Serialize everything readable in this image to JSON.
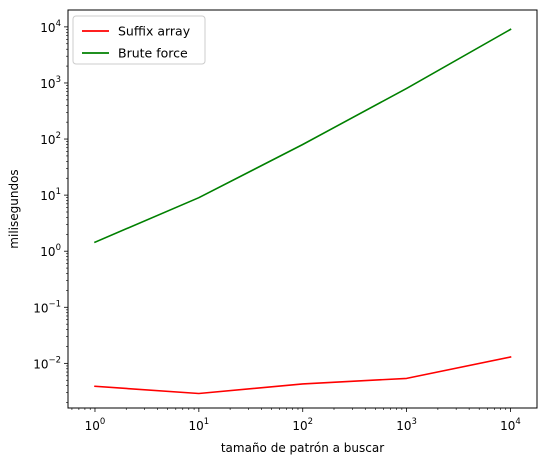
{
  "chart_data": {
    "type": "line",
    "xlabel": "tamaño de patrón a buscar",
    "ylabel": "milisegundos",
    "xscale": "log",
    "yscale": "log",
    "xlim": [
      0.55,
      18000
    ],
    "ylim": [
      0.0016,
      20000
    ],
    "xticks": [
      {
        "base": "10",
        "exp": "0",
        "value": 1
      },
      {
        "base": "10",
        "exp": "1",
        "value": 10
      },
      {
        "base": "10",
        "exp": "2",
        "value": 100
      },
      {
        "base": "10",
        "exp": "3",
        "value": 1000
      },
      {
        "base": "10",
        "exp": "4",
        "value": 10000
      }
    ],
    "yticks": [
      {
        "base": "10",
        "exp": "−2",
        "value": 0.01
      },
      {
        "base": "10",
        "exp": "−1",
        "value": 0.1
      },
      {
        "base": "10",
        "exp": "0",
        "value": 1
      },
      {
        "base": "10",
        "exp": "1",
        "value": 10
      },
      {
        "base": "10",
        "exp": "2",
        "value": 100
      },
      {
        "base": "10",
        "exp": "3",
        "value": 1000
      },
      {
        "base": "10",
        "exp": "4",
        "value": 10000
      }
    ],
    "grid": false,
    "legend_position": "top-left",
    "x": [
      1,
      10,
      100,
      1000,
      10000
    ],
    "series": [
      {
        "name": "Suffix array",
        "color": "#ff0000",
        "values": [
          0.0039,
          0.0029,
          0.0043,
          0.0054,
          0.013
        ]
      },
      {
        "name": "Brute force",
        "color": "#008000",
        "values": [
          1.45,
          9.0,
          80,
          800,
          9000
        ]
      }
    ]
  }
}
